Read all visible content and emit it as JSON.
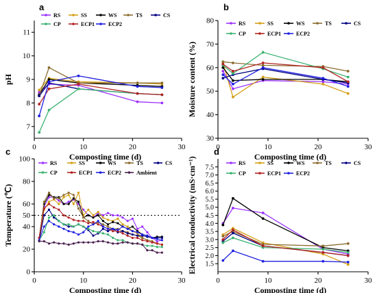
{
  "chart_data": [
    {
      "panel": "a",
      "type": "line",
      "xlabel": "Composting time (d)",
      "ylabel": "pH",
      "xlim": [
        0,
        30
      ],
      "ylim": [
        6.5,
        11.5
      ],
      "xticks": [
        0,
        10,
        20,
        30
      ],
      "yticks": [
        7,
        8,
        9,
        10,
        11
      ],
      "grid": false,
      "legend": "top-left, 3 rows",
      "x": [
        1,
        3,
        9,
        21,
        26
      ],
      "series": [
        {
          "name": "RS",
          "color": "#9b30ff",
          "values": [
            8.45,
            8.8,
            8.75,
            8.05,
            8.0
          ]
        },
        {
          "name": "SS",
          "color": "#d4a017",
          "values": [
            8.55,
            9.05,
            8.9,
            8.85,
            8.8
          ]
        },
        {
          "name": "WS",
          "color": "#000000",
          "values": [
            8.35,
            9.0,
            8.85,
            8.75,
            8.7
          ]
        },
        {
          "name": "TS",
          "color": "#8b6c2f",
          "values": [
            8.3,
            9.5,
            8.85,
            8.85,
            8.85
          ]
        },
        {
          "name": "CS",
          "color": "#000080",
          "values": [
            8.3,
            8.85,
            8.6,
            8.4,
            8.35
          ]
        },
        {
          "name": "CP",
          "color": "#3cb371",
          "values": [
            6.75,
            7.7,
            8.6,
            8.4,
            8.35
          ]
        },
        {
          "name": "ECP1",
          "color": "#b22222",
          "values": [
            7.95,
            8.6,
            8.8,
            8.4,
            8.35
          ]
        },
        {
          "name": "ECP2",
          "color": "#1f1fe0",
          "values": [
            7.45,
            8.9,
            9.15,
            8.7,
            8.65
          ]
        }
      ]
    },
    {
      "panel": "b",
      "type": "line",
      "xlabel": "Composting time (d)",
      "ylabel": "Moisture content (%)",
      "xlim": [
        0,
        30
      ],
      "ylim": [
        30,
        80
      ],
      "xticks": [
        0,
        10,
        20,
        30
      ],
      "yticks": [
        30,
        40,
        50,
        60,
        70,
        80
      ],
      "grid": false,
      "legend": "top, 3 rows",
      "x": [
        1,
        3,
        9,
        21,
        26
      ],
      "series": [
        {
          "name": "RS",
          "color": "#9b30ff",
          "values": [
            58.5,
            51.0,
            54.5,
            54.0,
            53.0
          ]
        },
        {
          "name": "SS",
          "color": "#d4a017",
          "values": [
            62.0,
            47.5,
            56.0,
            53.0,
            49.0
          ]
        },
        {
          "name": "WS",
          "color": "#000000",
          "values": [
            60.0,
            54.5,
            55.0,
            55.0,
            54.0
          ]
        },
        {
          "name": "TS",
          "color": "#8b6c2f",
          "values": [
            62.5,
            62.0,
            61.0,
            60.5,
            58.5
          ]
        },
        {
          "name": "CS",
          "color": "#000080",
          "values": [
            55.5,
            57.0,
            59.5,
            55.0,
            53.5
          ]
        },
        {
          "name": "CP",
          "color": "#3cb371",
          "values": [
            61.0,
            57.5,
            66.5,
            59.5,
            56.0
          ]
        },
        {
          "name": "ECP1",
          "color": "#b22222",
          "values": [
            61.5,
            58.5,
            62.0,
            60.0,
            54.0
          ]
        },
        {
          "name": "ECP2",
          "color": "#1f1fe0",
          "values": [
            57.0,
            53.0,
            60.0,
            55.5,
            52.0
          ]
        }
      ]
    },
    {
      "panel": "c",
      "type": "line",
      "xlabel": "Composting time (d)",
      "ylabel": "Temperature (℃)",
      "xlim": [
        0,
        30
      ],
      "ylim": [
        0,
        100
      ],
      "xticks": [
        0,
        10,
        20,
        30
      ],
      "yticks": [
        0,
        20,
        40,
        50,
        60,
        80,
        100
      ],
      "grid": false,
      "legend": "top, 3 rows",
      "reference_line": {
        "y": 50,
        "style": "dotted"
      },
      "x": [
        1,
        2,
        3,
        4,
        5,
        6,
        7,
        8,
        9,
        10,
        11,
        12,
        13,
        14,
        15,
        16,
        17,
        18,
        19,
        20,
        21,
        22,
        23,
        24,
        25,
        26
      ],
      "series": [
        {
          "name": "RS",
          "color": "#9b30ff",
          "values": [
            30,
            58,
            66,
            66,
            63,
            60,
            62,
            64,
            60,
            55,
            50,
            48,
            52,
            50,
            52,
            50,
            50,
            48,
            45,
            47,
            38,
            40,
            35,
            30,
            27,
            28
          ]
        },
        {
          "name": "SS",
          "color": "#d4a017",
          "values": [
            30,
            55,
            62,
            64,
            60,
            66,
            68,
            60,
            70,
            50,
            55,
            50,
            53,
            48,
            46,
            45,
            47,
            42,
            40,
            36,
            34,
            30,
            28,
            27,
            25,
            24
          ]
        },
        {
          "name": "WS",
          "color": "#000000",
          "values": [
            30,
            60,
            68,
            66,
            66,
            60,
            60,
            65,
            62,
            48,
            50,
            48,
            50,
            45,
            42,
            44,
            43,
            40,
            38,
            40,
            36,
            33,
            32,
            30,
            31,
            31
          ]
        },
        {
          "name": "TS",
          "color": "#8b6c2f",
          "values": [
            30,
            62,
            70,
            65,
            65,
            68,
            70,
            68,
            56,
            48,
            45,
            42,
            44,
            42,
            40,
            38,
            38,
            36,
            35,
            33,
            32,
            30,
            28,
            27,
            25,
            24
          ]
        },
        {
          "name": "CS",
          "color": "#000080",
          "values": [
            28,
            50,
            55,
            48,
            45,
            42,
            40,
            40,
            42,
            40,
            37,
            32,
            34,
            38,
            36,
            38,
            35,
            36,
            34,
            33,
            32,
            32,
            31,
            30,
            30,
            30
          ]
        },
        {
          "name": "CP",
          "color": "#3cb371",
          "values": [
            28,
            35,
            48,
            50,
            45,
            42,
            42,
            40,
            42,
            40,
            38,
            36,
            35,
            34,
            33,
            30,
            28,
            28,
            26,
            25,
            25,
            24,
            23,
            23,
            22,
            22
          ]
        },
        {
          "name": "ECP1",
          "color": "#b22222",
          "values": [
            30,
            56,
            60,
            57,
            55,
            50,
            48,
            46,
            45,
            45,
            43,
            44,
            42,
            40,
            38,
            36,
            36,
            34,
            32,
            30,
            30,
            28,
            27,
            26,
            25,
            24
          ]
        },
        {
          "name": "ECP2",
          "color": "#1f1fe0",
          "values": [
            28,
            40,
            45,
            42,
            40,
            38,
            36,
            35,
            33,
            35,
            40,
            42,
            45,
            40,
            38,
            38,
            37,
            40,
            38,
            36,
            35,
            33,
            32,
            30,
            29,
            28
          ]
        },
        {
          "name": "Ambient",
          "color": "#4b1f4f",
          "values": [
            27,
            27,
            25,
            26,
            25,
            25,
            24,
            25,
            26,
            26,
            26,
            26,
            27,
            27,
            26,
            25,
            25,
            26,
            26,
            25,
            25,
            24,
            19,
            19,
            17,
            17
          ]
        }
      ]
    },
    {
      "panel": "d",
      "type": "line",
      "xlabel": "Composting time (d)",
      "ylabel": "Electrical conductivity (mS·cm⁻¹)",
      "xlim": [
        0,
        30
      ],
      "ylim": [
        1.0,
        8.0
      ],
      "xticks": [
        0,
        10,
        20,
        30
      ],
      "yticks": [
        1.5,
        2.0,
        2.5,
        3.0,
        3.5,
        4.0,
        4.5,
        5.0,
        5.5,
        6.0,
        6.5,
        7.0,
        7.5
      ],
      "grid": false,
      "legend": "top, 3 rows",
      "x": [
        1,
        3,
        9,
        21,
        26
      ],
      "series": [
        {
          "name": "RS",
          "color": "#9b30ff",
          "values": [
            4.0,
            4.95,
            4.65,
            2.4,
            2.1
          ]
        },
        {
          "name": "SS",
          "color": "#d4a017",
          "values": [
            3.3,
            3.7,
            2.8,
            2.1,
            1.45
          ]
        },
        {
          "name": "WS",
          "color": "#000000",
          "values": [
            3.9,
            5.55,
            4.3,
            2.5,
            2.3
          ]
        },
        {
          "name": "TS",
          "color": "#8b6c2f",
          "values": [
            3.2,
            3.5,
            2.7,
            2.6,
            2.75
          ]
        },
        {
          "name": "CS",
          "color": "#000080",
          "values": [
            2.9,
            3.4,
            2.6,
            2.2,
            2.0
          ]
        },
        {
          "name": "CP",
          "color": "#3cb371",
          "values": [
            2.8,
            3.1,
            2.5,
            2.4,
            2.2
          ]
        },
        {
          "name": "ECP1",
          "color": "#b22222",
          "values": [
            3.0,
            3.6,
            2.6,
            2.2,
            2.0
          ]
        },
        {
          "name": "ECP2",
          "color": "#1f1fe0",
          "values": [
            1.7,
            2.3,
            1.65,
            1.65,
            1.6
          ]
        }
      ]
    }
  ]
}
